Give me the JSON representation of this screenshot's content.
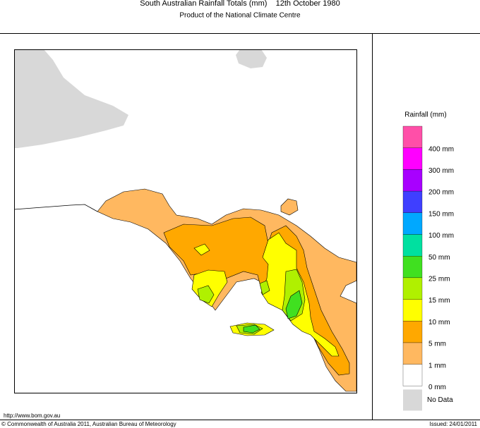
{
  "header": {
    "title": "South Australian Rainfall Totals (mm)    12th October 1980",
    "subtitle": "Product of the National Climate Centre"
  },
  "legend": {
    "title": "Rainfall (mm)",
    "colors": [
      "#ff4fa8",
      "#ff00ff",
      "#a800ff",
      "#3f3fff",
      "#00a8ff",
      "#00e0a0",
      "#40e020",
      "#b0f000",
      "#ffff00",
      "#ffa800",
      "#ffb860",
      "#ffffff"
    ],
    "labels": [
      "400 mm",
      "300 mm",
      "200 mm",
      "150 mm",
      "100 mm",
      "50 mm",
      "25 mm",
      "15 mm",
      "10 mm",
      "5 mm",
      "1 mm",
      "0 mm"
    ],
    "no_data": {
      "color": "#d8d8d8",
      "label": "No Data"
    }
  },
  "footer": {
    "url": "http://www.bom.gov.au",
    "copyright": "© Commonwealth of Australia 2011, Australian Bureau of Meteorology",
    "issued": "Issued: 24/01/2011"
  }
}
